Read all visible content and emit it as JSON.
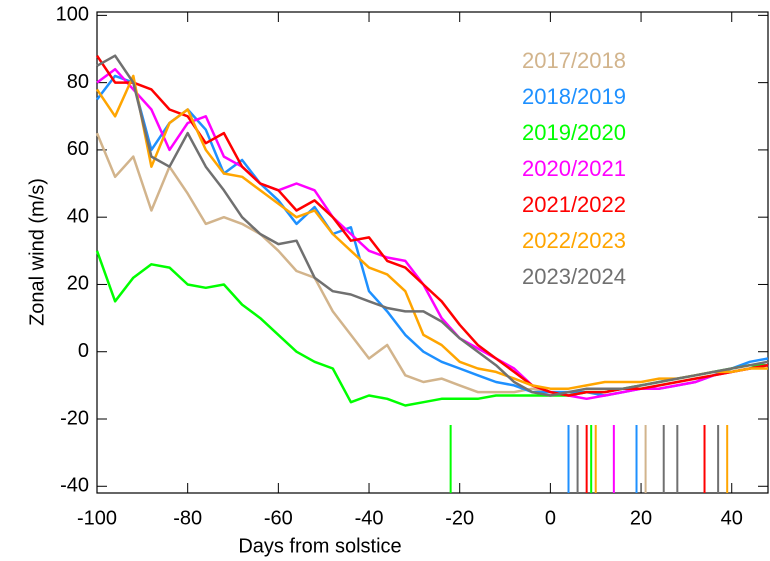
{
  "chart_data": {
    "type": "line",
    "xlabel": "Days from solstice",
    "ylabel": "Zonal wind (m/s)",
    "xlim": [
      -100,
      48
    ],
    "ylim": [
      -42,
      101
    ],
    "xticks": [
      -100,
      -80,
      -60,
      -40,
      -20,
      0,
      20,
      40
    ],
    "yticks": [
      -40,
      -20,
      0,
      20,
      40,
      60,
      80,
      100
    ],
    "x": [
      -100,
      -96,
      -92,
      -88,
      -84,
      -80,
      -76,
      -72,
      -68,
      -64,
      -60,
      -56,
      -52,
      -48,
      -44,
      -40,
      -36,
      -32,
      -28,
      -24,
      -20,
      -16,
      -12,
      -8,
      -4,
      0,
      4,
      8,
      12,
      16,
      20,
      24,
      28,
      32,
      36,
      40,
      44,
      48
    ],
    "series": [
      {
        "name": "2017/2018",
        "color": "#d2b48c",
        "markers": [
          21
        ],
        "values": [
          65,
          52,
          58,
          42,
          55,
          47,
          38,
          40,
          38,
          35,
          30,
          24,
          22,
          12,
          5,
          -2,
          2,
          -7,
          -9,
          -8,
          -10,
          -12,
          -12,
          -12,
          -11,
          -12,
          -12,
          -12,
          -12,
          -11,
          -11,
          -10,
          -9,
          -8,
          -7,
          -6,
          -5,
          -4
        ]
      },
      {
        "name": "2018/2019",
        "color": "#1e90ff",
        "markers": [
          4,
          19
        ],
        "values": [
          75,
          82,
          80,
          60,
          68,
          72,
          66,
          53,
          57,
          50,
          45,
          38,
          43,
          35,
          37,
          18,
          12,
          5,
          0,
          -3,
          -5,
          -7,
          -9,
          -10,
          -12,
          -12,
          -12,
          -12,
          -13,
          -12,
          -11,
          -11,
          -10,
          -9,
          -7,
          -5,
          -3,
          -2
        ]
      },
      {
        "name": "2019/2020",
        "color": "#00ff00",
        "markers": [
          -22,
          9
        ],
        "values": [
          30,
          15,
          22,
          26,
          25,
          20,
          19,
          20,
          14,
          10,
          5,
          0,
          -3,
          -5,
          -15,
          -13,
          -14,
          -16,
          -15,
          -14,
          -14,
          -14,
          -13,
          -13,
          -13,
          -13,
          -13,
          -12,
          -12,
          -11,
          -10,
          -9,
          -8,
          -7,
          -6,
          -5,
          -4,
          -4
        ]
      },
      {
        "name": "2020/2021",
        "color": "#ff00ff",
        "markers": [
          14
        ],
        "values": [
          80,
          84,
          78,
          72,
          60,
          68,
          70,
          58,
          55,
          50,
          48,
          50,
          48,
          40,
          35,
          30,
          28,
          27,
          20,
          10,
          4,
          1,
          -2,
          -5,
          -10,
          -12,
          -13,
          -14,
          -13,
          -12,
          -11,
          -11,
          -10,
          -9,
          -7,
          -6,
          -5,
          -4
        ]
      },
      {
        "name": "2021/2022",
        "color": "#ff0000",
        "markers": [
          8,
          34
        ],
        "values": [
          88,
          80,
          80,
          78,
          72,
          70,
          62,
          65,
          55,
          50,
          48,
          42,
          45,
          40,
          33,
          34,
          27,
          25,
          20,
          15,
          8,
          2,
          -2,
          -6,
          -10,
          -12,
          -13,
          -12,
          -12,
          -11,
          -11,
          -10,
          -9,
          -8,
          -7,
          -6,
          -5,
          -4
        ]
      },
      {
        "name": "2022/2023",
        "color": "#ffa500",
        "markers": [
          10,
          39
        ],
        "values": [
          78,
          70,
          82,
          55,
          68,
          72,
          60,
          53,
          52,
          48,
          44,
          40,
          42,
          35,
          30,
          25,
          23,
          18,
          5,
          2,
          -3,
          -5,
          -6,
          -8,
          -10,
          -11,
          -11,
          -10,
          -9,
          -9,
          -9,
          -8,
          -8,
          -7,
          -6,
          -6,
          -5,
          -5
        ]
      },
      {
        "name": "2023/2024",
        "color": "#707070",
        "markers": [
          6,
          25,
          28,
          37
        ],
        "values": [
          85,
          88,
          80,
          58,
          55,
          65,
          55,
          48,
          40,
          35,
          32,
          33,
          22,
          18,
          17,
          15,
          13,
          12,
          12,
          9,
          4,
          0,
          -4,
          -9,
          -12,
          -13,
          -12,
          -11,
          -11,
          -11,
          -10,
          -9,
          -8,
          -7,
          -6,
          -5,
          -4,
          -3
        ]
      }
    ]
  }
}
